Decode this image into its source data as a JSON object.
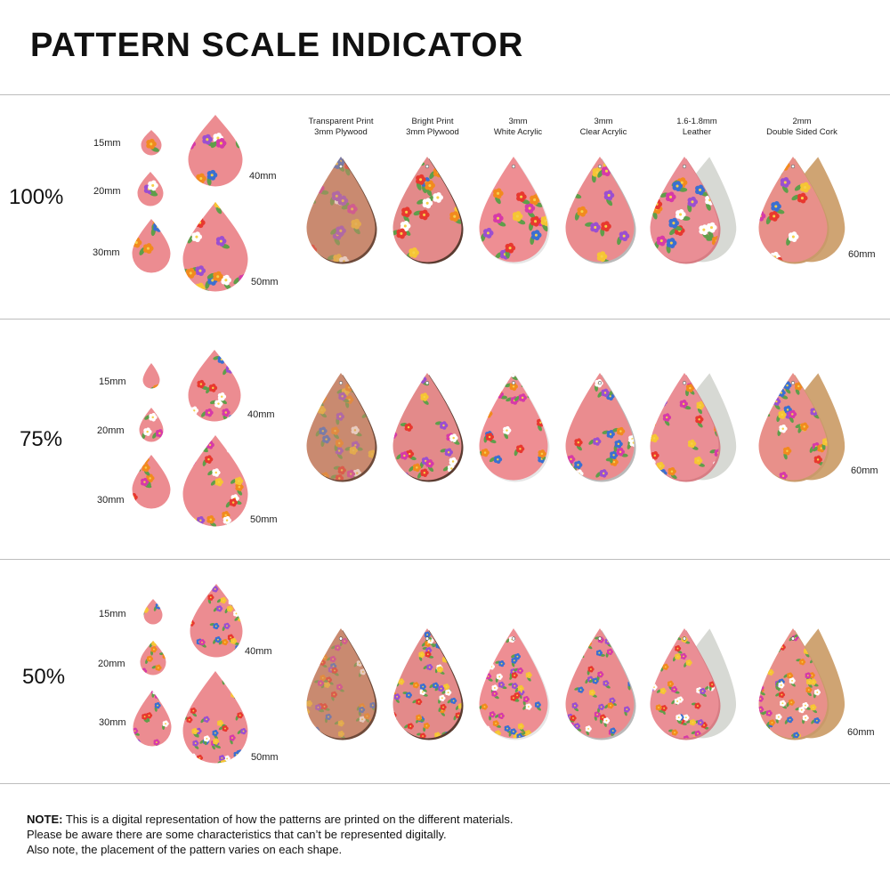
{
  "title": "PATTERN SCALE INDICATOR",
  "materials": [
    {
      "line1": "Transparent Print",
      "line2": "3mm Plywood",
      "base": "#c98a70",
      "edge": "#6e4a3a",
      "back": ""
    },
    {
      "line1": "Bright Print",
      "line2": "3mm Plywood",
      "base": "#e38a8a",
      "edge": "#5a3b30",
      "back": ""
    },
    {
      "line1": "3mm",
      "line2": "White Acrylic",
      "base": "#ee8e93",
      "edge": "#e6e6e6",
      "back": ""
    },
    {
      "line1": "3mm",
      "line2": "Clear Acrylic",
      "base": "#ea8c8f",
      "edge": "#b9b9b9",
      "back": ""
    },
    {
      "line1": "1.6-1.8mm",
      "line2": "Leather",
      "base": "#ea8e95",
      "edge": "#d77d84",
      "back": "#d7d9d4"
    },
    {
      "line1": "2mm",
      "line2": "Double Sided Cork",
      "base": "#e8908a",
      "edge": "#c99a6a",
      "back": "#cfa473"
    }
  ],
  "sections": [
    {
      "scale": "100%",
      "sizes": {
        "s15": "15mm",
        "s20": "20mm",
        "s30": "30mm",
        "s40": "40mm",
        "s50": "50mm",
        "s60": "60mm"
      }
    },
    {
      "scale": "75%",
      "sizes": {
        "s15": "15mm",
        "s20": "20mm",
        "s30": "30mm",
        "s40": "40mm",
        "s50": "50mm",
        "s60": "60mm"
      }
    },
    {
      "scale": "50%",
      "sizes": {
        "s15": "15mm",
        "s20": "20mm",
        "s30": "30mm",
        "s40": "40mm",
        "s50": "50mm",
        "s60": "60mm"
      }
    }
  ],
  "note": {
    "bold": "NOTE:",
    "line1": " This is a digital representation of how the patterns are printed on the different materials.",
    "line2": "Please be aware there are some characteristics that can’t be represented digitally.",
    "line3": "Also note, the placement of the pattern varies on each shape."
  },
  "colors": {
    "flowers": [
      "#e8382f",
      "#f28a1e",
      "#f6c534",
      "#3b6fd1",
      "#d63aa8",
      "#ffffff",
      "#9b4fd0",
      "#6aa84f"
    ]
  }
}
